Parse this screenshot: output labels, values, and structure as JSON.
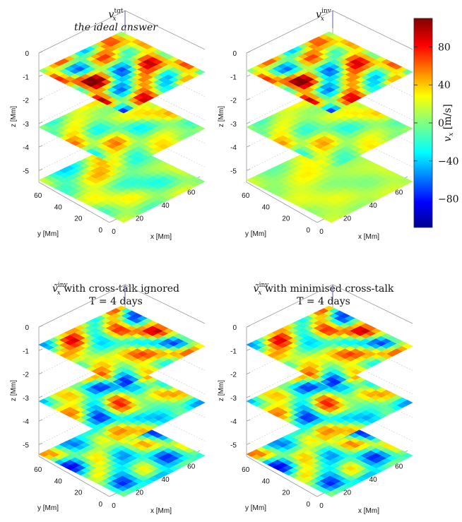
{
  "chart_data": {
    "type": "heatmap",
    "colormap": "jet",
    "colorbar": {
      "label": "v",
      "label_sub": "x",
      "label_unit": "[m/s]",
      "clim": [
        -110,
        110
      ],
      "ticks": [
        80,
        40,
        0,
        -40,
        -80
      ],
      "tick_labels": [
        "80",
        "40",
        "0",
        "−40",
        "−80"
      ]
    },
    "axes": {
      "xlabel": "x [Mm]",
      "ylabel": "y [Mm]",
      "zlabel": "z [Mm]",
      "x_ticks": [
        "0",
        "20",
        "40",
        "60"
      ],
      "y_ticks": [
        "0",
        "20",
        "40",
        "60"
      ],
      "z_ticks": [
        "0",
        "-1",
        "-2",
        "-3",
        "-4",
        "-5"
      ],
      "slice_depths": [
        -1,
        -3,
        -5
      ]
    },
    "panels": [
      {
        "title_prefix": "v",
        "title_sub": "x",
        "title_sup": "tgt",
        "title_suffix": "",
        "title_line2": "the ideal answer",
        "title_line2_italic": true,
        "slice_amplitudes": [
          1.0,
          0.55,
          0.4
        ],
        "slice_bias": [
          18,
          10,
          5
        ],
        "seed": 1
      },
      {
        "title_prefix": "v",
        "title_sub": "x",
        "title_sup": "inv",
        "title_suffix": "",
        "title_line2": "",
        "title_line2_italic": false,
        "slice_amplitudes": [
          0.95,
          0.45,
          0.18
        ],
        "slice_bias": [
          18,
          10,
          12
        ],
        "seed": 1
      },
      {
        "title_prefix": "ṽ",
        "title_sub": "x",
        "title_sup": "inv",
        "title_suffix": " with cross-talk ignored",
        "title_line2": "T = 4 days",
        "title_line2_italic": false,
        "slice_amplitudes": [
          1.0,
          0.7,
          0.75
        ],
        "slice_bias": [
          15,
          0,
          -15
        ],
        "seed": 2
      },
      {
        "title_prefix": "ṽ",
        "title_sub": "x",
        "title_sup": "inv",
        "title_suffix": " with minimised cross-talk",
        "title_line2": "T = 4 days",
        "title_line2_italic": false,
        "slice_amplitudes": [
          1.0,
          0.7,
          0.8
        ],
        "slice_bias": [
          15,
          0,
          -12
        ],
        "seed": 2
      }
    ]
  }
}
